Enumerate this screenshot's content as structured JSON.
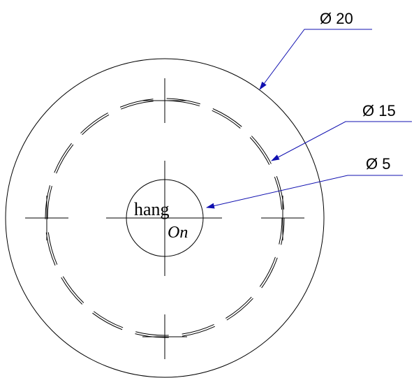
{
  "dimensions": [
    {
      "label": "Ø 20"
    },
    {
      "label": "Ø 15"
    },
    {
      "label": "Ø 5"
    }
  ],
  "logo": {
    "top": "hang",
    "bottom": "On"
  }
}
